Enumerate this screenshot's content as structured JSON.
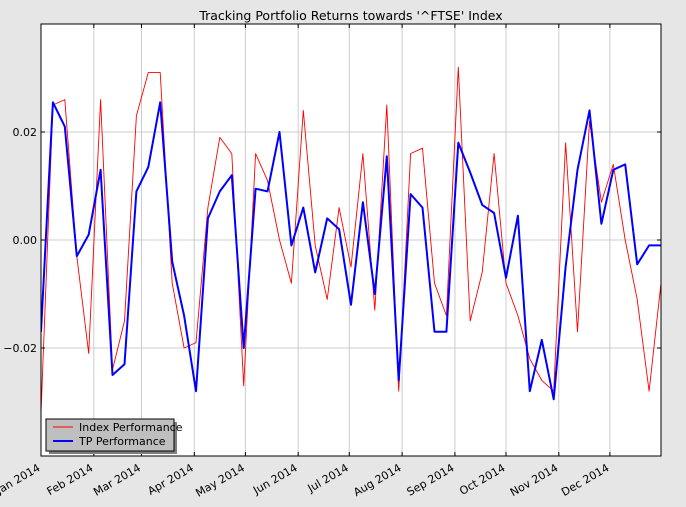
{
  "chart_data": {
    "type": "line",
    "title": "Tracking Portfolio Returns towards '^FTSE' Index",
    "xlabel": "",
    "ylabel": "",
    "x_range": [
      "2014-01-01",
      "2014-12-31"
    ],
    "ylim": [
      -0.04,
      0.04
    ],
    "y_ticks": [
      -0.02,
      0.0,
      0.02
    ],
    "y_tick_labels": [
      "−0.02",
      "0.00",
      "0.02"
    ],
    "x_ticks": [
      "2014-01-01",
      "2014-02-01",
      "2014-03-01",
      "2014-04-01",
      "2014-05-01",
      "2014-06-01",
      "2014-07-01",
      "2014-08-01",
      "2014-09-01",
      "2014-10-01",
      "2014-11-01",
      "2014-12-01"
    ],
    "x_tick_labels": [
      "Jan 2014",
      "Feb 2014",
      "Mar 2014",
      "Apr 2014",
      "May 2014",
      "Jun 2014",
      "Jul 2014",
      "Aug 2014",
      "Sep 2014",
      "Oct 2014",
      "Nov 2014",
      "Dec 2014"
    ],
    "grid": true,
    "legend_position": "lower-left",
    "series": [
      {
        "name": "Index Performance",
        "color": "#ff0000",
        "x": [
          "2014-01-01",
          "2014-01-08",
          "2014-01-15",
          "2014-01-22",
          "2014-01-29",
          "2014-02-05",
          "2014-02-12",
          "2014-02-19",
          "2014-02-26",
          "2014-03-05",
          "2014-03-12",
          "2014-03-19",
          "2014-03-26",
          "2014-04-02",
          "2014-04-09",
          "2014-04-16",
          "2014-04-23",
          "2014-04-30",
          "2014-05-07",
          "2014-05-14",
          "2014-05-21",
          "2014-05-28",
          "2014-06-04",
          "2014-06-11",
          "2014-06-18",
          "2014-06-25",
          "2014-07-02",
          "2014-07-09",
          "2014-07-16",
          "2014-07-23",
          "2014-07-30",
          "2014-08-06",
          "2014-08-13",
          "2014-08-20",
          "2014-08-27",
          "2014-09-03",
          "2014-09-10",
          "2014-09-17",
          "2014-09-24",
          "2014-10-01",
          "2014-10-08",
          "2014-10-15",
          "2014-10-22",
          "2014-10-29",
          "2014-11-05",
          "2014-11-12",
          "2014-11-19",
          "2014-11-26",
          "2014-12-03",
          "2014-12-10",
          "2014-12-17",
          "2014-12-24",
          "2014-12-31"
        ],
        "values": [
          -0.032,
          0.025,
          0.026,
          -0.003,
          -0.021,
          0.026,
          -0.024,
          -0.015,
          0.023,
          0.031,
          0.031,
          -0.008,
          -0.02,
          -0.019,
          0.006,
          0.019,
          0.016,
          -0.027,
          0.016,
          0.011,
          0.0,
          -0.008,
          0.024,
          -0.001,
          -0.011,
          0.006,
          -0.005,
          0.016,
          -0.013,
          0.025,
          -0.028,
          0.016,
          0.017,
          -0.008,
          -0.014,
          0.032,
          -0.015,
          -0.006,
          0.016,
          -0.008,
          -0.014,
          -0.022,
          -0.026,
          -0.028,
          0.018,
          -0.017,
          0.022,
          0.007,
          0.014,
          0.0,
          -0.011,
          -0.028,
          -0.008
        ]
      },
      {
        "name": "TP Performance",
        "color": "#0000ff",
        "x": [
          "2014-01-01",
          "2014-01-08",
          "2014-01-15",
          "2014-01-22",
          "2014-01-29",
          "2014-02-05",
          "2014-02-12",
          "2014-02-19",
          "2014-02-26",
          "2014-03-05",
          "2014-03-12",
          "2014-03-19",
          "2014-03-26",
          "2014-04-02",
          "2014-04-09",
          "2014-04-16",
          "2014-04-23",
          "2014-04-30",
          "2014-05-07",
          "2014-05-14",
          "2014-05-21",
          "2014-05-28",
          "2014-06-04",
          "2014-06-11",
          "2014-06-18",
          "2014-06-25",
          "2014-07-02",
          "2014-07-09",
          "2014-07-16",
          "2014-07-23",
          "2014-07-30",
          "2014-08-06",
          "2014-08-13",
          "2014-08-20",
          "2014-08-27",
          "2014-09-03",
          "2014-09-10",
          "2014-09-17",
          "2014-09-24",
          "2014-10-01",
          "2014-10-08",
          "2014-10-15",
          "2014-10-22",
          "2014-10-29",
          "2014-11-05",
          "2014-11-12",
          "2014-11-19",
          "2014-11-26",
          "2014-12-03",
          "2014-12-10",
          "2014-12-17",
          "2014-12-24",
          "2014-12-31"
        ],
        "values": [
          -0.017,
          0.0255,
          0.021,
          -0.003,
          0.001,
          0.013,
          -0.025,
          -0.023,
          0.009,
          0.0135,
          0.0255,
          -0.004,
          -0.014,
          -0.028,
          0.004,
          0.009,
          0.012,
          -0.02,
          0.0095,
          0.009,
          0.02,
          -0.001,
          0.006,
          -0.006,
          0.004,
          0.002,
          -0.012,
          0.007,
          -0.01,
          0.0155,
          -0.026,
          0.0085,
          0.006,
          -0.017,
          -0.017,
          0.018,
          0.0125,
          0.0065,
          0.005,
          -0.007,
          0.0045,
          -0.028,
          -0.0185,
          -0.0295,
          -0.005,
          0.013,
          0.024,
          0.003,
          0.013,
          0.014,
          -0.0045,
          -0.001,
          -0.001
        ]
      }
    ]
  }
}
